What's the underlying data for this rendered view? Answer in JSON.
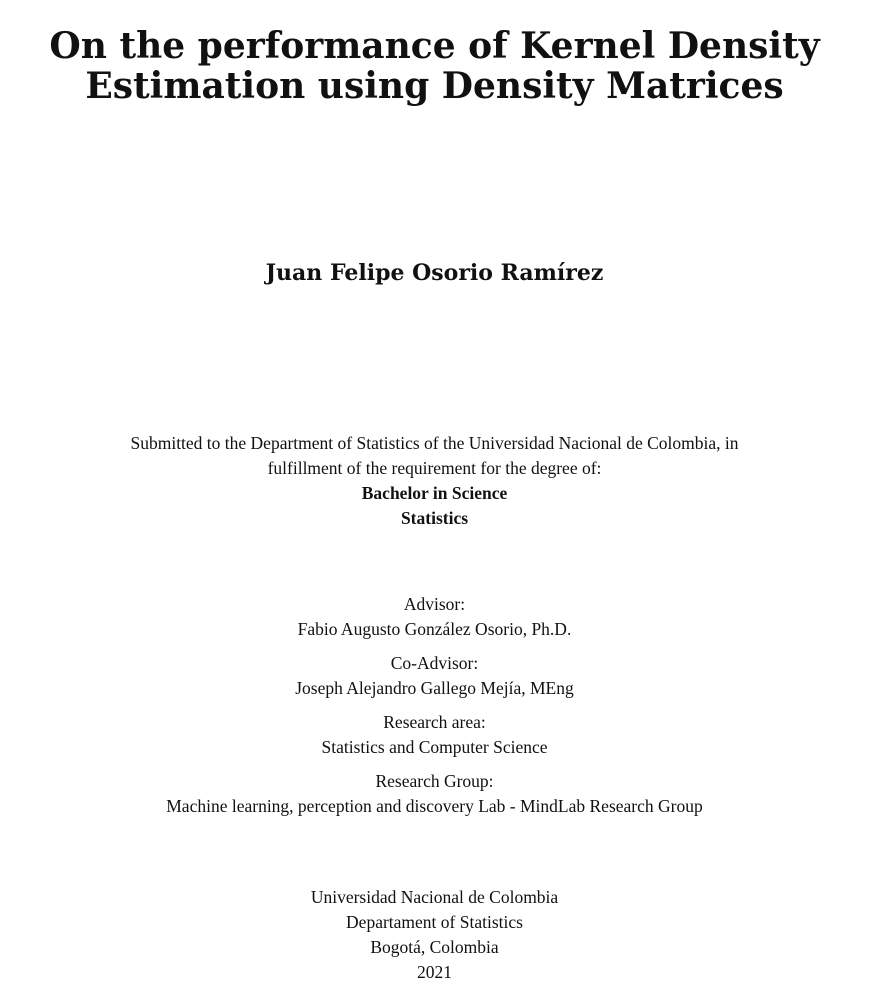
{
  "title": {
    "line1": "On the performance of Kernel Density",
    "line2": "Estimation using Density Matrices"
  },
  "author": "Juan Felipe Osorio Ramírez",
  "submission": {
    "line1": "Submitted to the Department of Statistics of the Universidad Nacional de Colombia, in",
    "line2": "fulfillment of the requirement for the degree of:",
    "degree": "Bachelor in Science",
    "field": "Statistics"
  },
  "advisor": {
    "label": "Advisor:",
    "name": "Fabio Augusto González Osorio, Ph.D."
  },
  "co_advisor": {
    "label": "Co-Advisor:",
    "name": "Joseph Alejandro Gallego Mejía, MEng"
  },
  "research_area": {
    "label": "Research area:",
    "value": "Statistics and Computer Science"
  },
  "research_group": {
    "label": "Research Group:",
    "value": "Machine learning, perception and discovery Lab - MindLab Research Group"
  },
  "institution": {
    "university": "Universidad Nacional de Colombia",
    "department": "Departament of Statistics",
    "city": "Bogotá, Colombia",
    "year": "2021"
  }
}
